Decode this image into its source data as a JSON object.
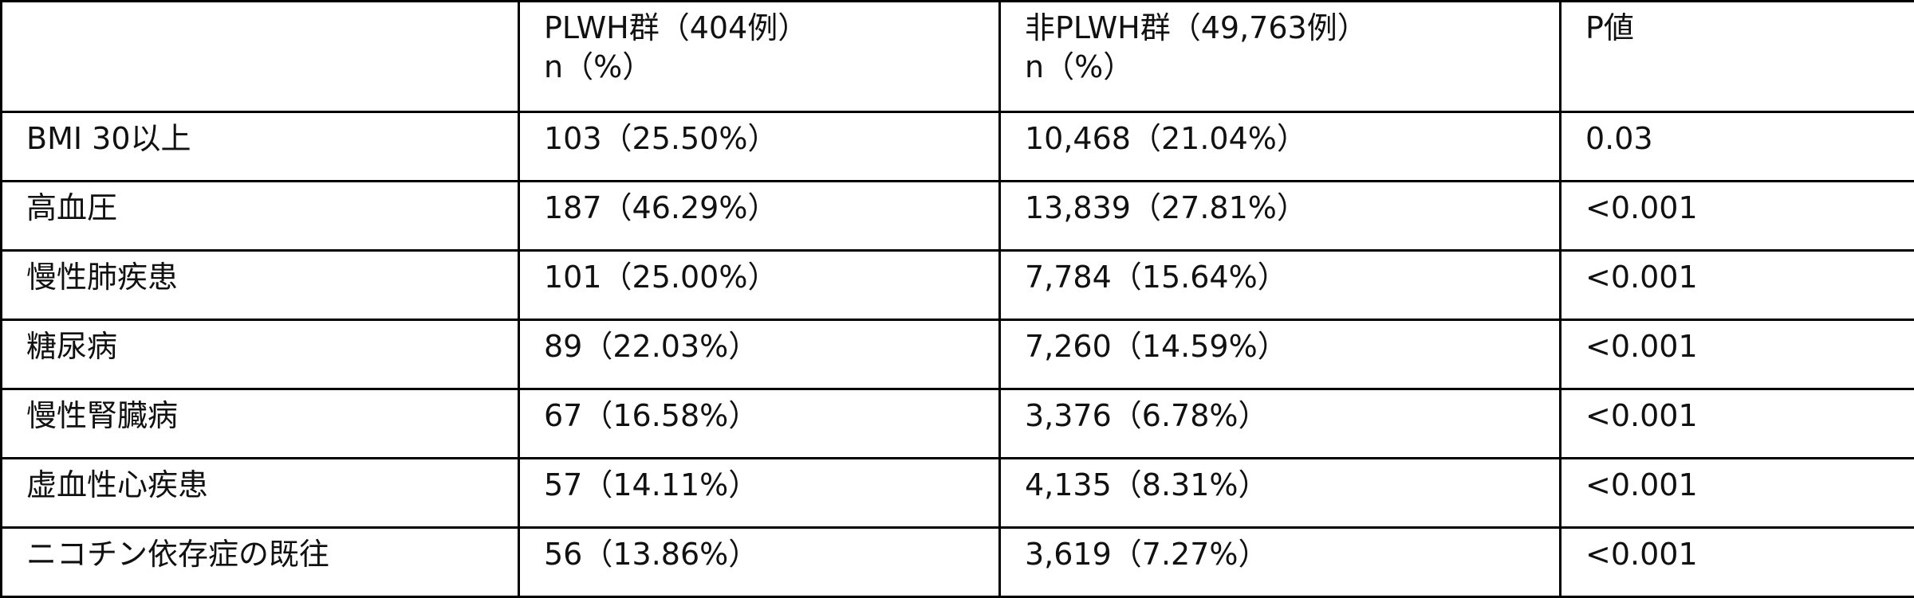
{
  "table": {
    "headers": [
      {
        "line1": "",
        "line2": ""
      },
      {
        "line1": "PLWH群（404例）",
        "line2": "n（%）"
      },
      {
        "line1": "非PLWH群（49,763例）",
        "line2": "n（%）"
      },
      {
        "line1": "P値",
        "line2": ""
      }
    ],
    "rows": [
      {
        "label": "BMI 30以上",
        "plwh": "103（25.50%）",
        "non_plwh": "10,468（21.04%）",
        "p_value": "0.03"
      },
      {
        "label": "高血圧",
        "plwh": "187（46.29%）",
        "non_plwh": "13,839（27.81%）",
        "p_value": "<0.001"
      },
      {
        "label": "慢性肺疾患",
        "plwh": "101（25.00%）",
        "non_plwh": "7,784（15.64%）",
        "p_value": "<0.001"
      },
      {
        "label": "糖尿病",
        "plwh": "89（22.03%）",
        "non_plwh": "7,260（14.59%）",
        "p_value": "<0.001"
      },
      {
        "label": "慢性腎臓病",
        "plwh": "67（16.58%）",
        "non_plwh": "3,376（6.78%）",
        "p_value": "<0.001"
      },
      {
        "label": "虚血性心疾患",
        "plwh": "57（14.11%）",
        "non_plwh": "4,135（8.31%）",
        "p_value": "<0.001"
      },
      {
        "label": "ニコチン依存症の既往",
        "plwh": "56（13.86%）",
        "non_plwh": "3,619（7.27%）",
        "p_value": "<0.001"
      }
    ]
  }
}
